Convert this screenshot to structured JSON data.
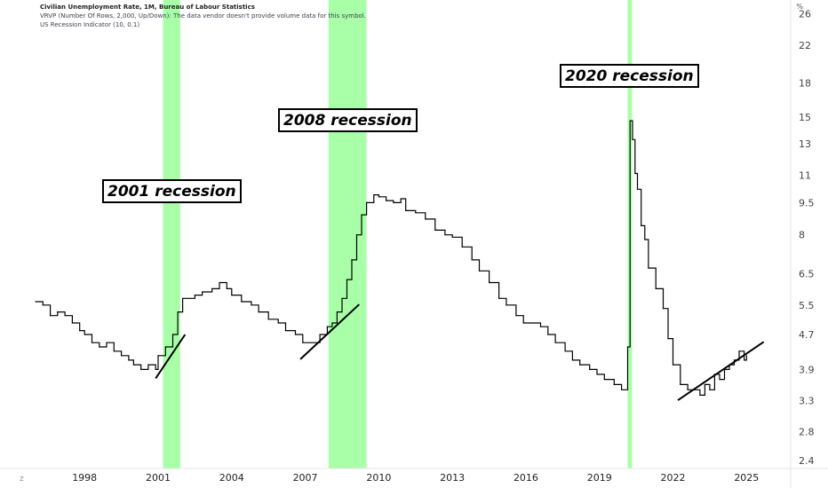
{
  "legend": {
    "title": "Civilian Unemployment Rate, 1M, Bureau of Labour Statistics",
    "vrvp": "VRVP (Number Of Rows, 2,000, Up/Down): The data vendor doesn't provide volume data for this symbol.",
    "recession": "US Recession Indicator (10, 0.1)"
  },
  "corner_left": "Z",
  "corner_right": "%",
  "annotations": [
    {
      "id": "ann-2001",
      "text": "2001 recession"
    },
    {
      "id": "ann-2008",
      "text": "2008 recession"
    },
    {
      "id": "ann-2020",
      "text": "2020 recession"
    }
  ],
  "chart_data": {
    "type": "line",
    "title": "Civilian Unemployment Rate, 1M, Bureau of Labour Statistics",
    "y_scale": "log",
    "y_unit": "%",
    "y_ticks": [
      "26",
      "22",
      "18",
      "15",
      "13",
      "11",
      "9.5",
      "8",
      "6.5",
      "5.5",
      "4.7",
      "3.9",
      "3.3",
      "2.8",
      "2.4"
    ],
    "x_ticks": [
      "1998",
      "2001",
      "2004",
      "2007",
      "2010",
      "2013",
      "2016",
      "2019",
      "2022",
      "2025"
    ],
    "xlim": [
      1996.0,
      2026.8
    ],
    "ylim": [
      2.3,
      28.0
    ],
    "series": [
      {
        "step": true,
        "points": [
          [
            1996.0,
            5.6
          ],
          [
            1996.3,
            5.5
          ],
          [
            1996.6,
            5.2
          ],
          [
            1996.9,
            5.3
          ],
          [
            1997.2,
            5.2
          ],
          [
            1997.5,
            5.0
          ],
          [
            1997.8,
            4.8
          ],
          [
            1998.0,
            4.7
          ],
          [
            1998.3,
            4.5
          ],
          [
            1998.6,
            4.4
          ],
          [
            1998.9,
            4.5
          ],
          [
            1999.2,
            4.3
          ],
          [
            1999.5,
            4.2
          ],
          [
            1999.8,
            4.1
          ],
          [
            2000.0,
            4.0
          ],
          [
            2000.3,
            3.9
          ],
          [
            2000.6,
            4.0
          ],
          [
            2000.9,
            3.9
          ],
          [
            2001.0,
            4.2
          ],
          [
            2001.3,
            4.4
          ],
          [
            2001.6,
            4.7
          ],
          [
            2001.8,
            5.3
          ],
          [
            2002.0,
            5.7
          ],
          [
            2002.5,
            5.8
          ],
          [
            2002.8,
            5.9
          ],
          [
            2003.2,
            6.0
          ],
          [
            2003.5,
            6.2
          ],
          [
            2003.8,
            6.0
          ],
          [
            2004.0,
            5.8
          ],
          [
            2004.4,
            5.6
          ],
          [
            2004.8,
            5.5
          ],
          [
            2005.1,
            5.3
          ],
          [
            2005.5,
            5.1
          ],
          [
            2005.9,
            5.0
          ],
          [
            2006.2,
            4.8
          ],
          [
            2006.6,
            4.7
          ],
          [
            2006.9,
            4.5
          ],
          [
            2007.2,
            4.5
          ],
          [
            2007.6,
            4.7
          ],
          [
            2007.9,
            4.9
          ],
          [
            2008.1,
            5.0
          ],
          [
            2008.3,
            5.3
          ],
          [
            2008.5,
            5.7
          ],
          [
            2008.7,
            6.3
          ],
          [
            2008.9,
            7.0
          ],
          [
            2009.1,
            8.0
          ],
          [
            2009.3,
            8.9
          ],
          [
            2009.5,
            9.5
          ],
          [
            2009.8,
            9.9
          ],
          [
            2010.0,
            9.8
          ],
          [
            2010.3,
            9.6
          ],
          [
            2010.6,
            9.5
          ],
          [
            2010.9,
            9.7
          ],
          [
            2011.1,
            9.1
          ],
          [
            2011.5,
            9.0
          ],
          [
            2011.9,
            8.7
          ],
          [
            2012.3,
            8.2
          ],
          [
            2012.7,
            8.0
          ],
          [
            2013.0,
            7.9
          ],
          [
            2013.4,
            7.5
          ],
          [
            2013.8,
            7.0
          ],
          [
            2014.1,
            6.6
          ],
          [
            2014.5,
            6.2
          ],
          [
            2014.9,
            5.7
          ],
          [
            2015.2,
            5.5
          ],
          [
            2015.6,
            5.2
          ],
          [
            2015.9,
            5.0
          ],
          [
            2016.2,
            5.0
          ],
          [
            2016.6,
            4.9
          ],
          [
            2016.9,
            4.7
          ],
          [
            2017.2,
            4.5
          ],
          [
            2017.6,
            4.3
          ],
          [
            2017.9,
            4.1
          ],
          [
            2018.2,
            4.0
          ],
          [
            2018.6,
            3.9
          ],
          [
            2018.9,
            3.8
          ],
          [
            2019.2,
            3.7
          ],
          [
            2019.6,
            3.6
          ],
          [
            2019.9,
            3.5
          ],
          [
            2020.15,
            4.4
          ],
          [
            2020.25,
            14.7
          ],
          [
            2020.35,
            13.3
          ],
          [
            2020.45,
            11.1
          ],
          [
            2020.55,
            10.2
          ],
          [
            2020.7,
            8.4
          ],
          [
            2020.85,
            7.8
          ],
          [
            2021.0,
            6.7
          ],
          [
            2021.3,
            6.0
          ],
          [
            2021.6,
            5.4
          ],
          [
            2021.8,
            4.6
          ],
          [
            2022.0,
            4.0
          ],
          [
            2022.3,
            3.6
          ],
          [
            2022.6,
            3.5
          ],
          [
            2022.9,
            3.5
          ],
          [
            2023.1,
            3.4
          ],
          [
            2023.3,
            3.6
          ],
          [
            2023.5,
            3.5
          ],
          [
            2023.7,
            3.8
          ],
          [
            2023.9,
            3.7
          ],
          [
            2024.1,
            3.9
          ],
          [
            2024.3,
            4.0
          ],
          [
            2024.5,
            4.1
          ],
          [
            2024.7,
            4.3
          ],
          [
            2024.9,
            4.1
          ],
          [
            2025.0,
            4.2
          ]
        ]
      }
    ],
    "recessions": [
      [
        2001.2,
        2001.9
      ],
      [
        2007.95,
        2009.5
      ],
      [
        2020.15,
        2020.33
      ]
    ],
    "trend_lines": [
      [
        [
          2000.9,
          3.72
        ],
        [
          2002.1,
          4.7
        ]
      ],
      [
        [
          2006.8,
          4.12
        ],
        [
          2009.2,
          5.52
        ]
      ],
      [
        [
          2022.2,
          3.31
        ],
        [
          2025.7,
          4.52
        ]
      ]
    ],
    "colors": {
      "line": "#000000",
      "recession": "#99ff99",
      "trend": "#000000",
      "axis_text": "#444444"
    }
  }
}
